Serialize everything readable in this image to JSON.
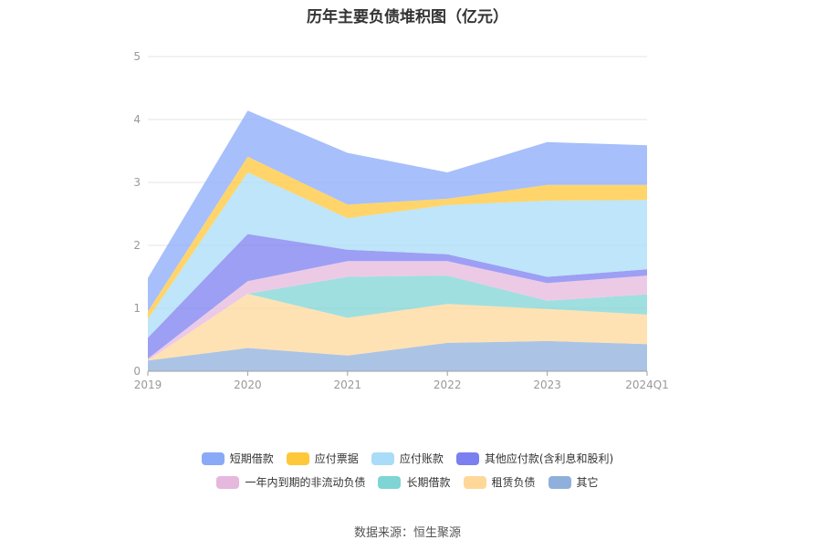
{
  "chart_data": {
    "type": "area",
    "title": "历年主要负债堆积图（亿元）",
    "categories": [
      "2019",
      "2020",
      "2021",
      "2022",
      "2023",
      "2024Q1"
    ],
    "ylim": [
      0,
      5
    ],
    "yticks": [
      "0",
      "1",
      "2",
      "3",
      "4",
      "5"
    ],
    "stacked": true,
    "grid": true,
    "legend_position": "bottom",
    "series": [
      {
        "name": "其它",
        "color": "#8fb0dc",
        "values": [
          0.17,
          0.37,
          0.25,
          0.45,
          0.48,
          0.43
        ]
      },
      {
        "name": "租赁负债",
        "color": "#ffd899",
        "values": [
          0.0,
          0.86,
          0.6,
          0.62,
          0.51,
          0.47
        ]
      },
      {
        "name": "长期借款",
        "color": "#7fd4d4",
        "values": [
          0.0,
          0.0,
          0.65,
          0.45,
          0.13,
          0.32
        ]
      },
      {
        "name": "一年内到期的非流动负债",
        "color": "#e5b8dd",
        "values": [
          0.03,
          0.2,
          0.25,
          0.23,
          0.28,
          0.3
        ]
      },
      {
        "name": "其他应付款(含利息和股利)",
        "color": "#7b7ff0",
        "values": [
          0.33,
          0.75,
          0.18,
          0.11,
          0.1,
          0.1
        ]
      },
      {
        "name": "应付账款",
        "color": "#a8dcf7",
        "values": [
          0.3,
          0.98,
          0.5,
          0.78,
          1.21,
          1.1
        ]
      },
      {
        "name": "应付票据",
        "color": "#ffc73a",
        "values": [
          0.12,
          0.25,
          0.22,
          0.1,
          0.25,
          0.24
        ]
      },
      {
        "name": "短期借款",
        "color": "#8aaaf8",
        "values": [
          0.53,
          0.73,
          0.82,
          0.42,
          0.68,
          0.63
        ]
      }
    ],
    "legend_rows": [
      [
        "短期借款",
        "应付票据",
        "应付账款",
        "其他应付款(含利息和股利)"
      ],
      [
        "一年内到期的非流动负债",
        "长期借款",
        "租赁负债",
        "其它"
      ]
    ],
    "source": "数据来源：恒生聚源"
  }
}
